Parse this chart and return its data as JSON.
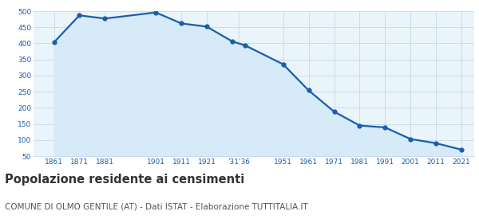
{
  "years": [
    1861,
    1871,
    1881,
    1901,
    1911,
    1921,
    1931,
    1936,
    1951,
    1961,
    1971,
    1981,
    1991,
    2001,
    2011,
    2021
  ],
  "population": [
    403,
    487,
    477,
    496,
    462,
    452,
    406,
    394,
    335,
    254,
    188,
    145,
    139,
    103,
    90,
    70
  ],
  "ylim": [
    50,
    500
  ],
  "yticks": [
    50,
    100,
    150,
    200,
    250,
    300,
    350,
    400,
    450,
    500
  ],
  "xlim": [
    1853,
    2026
  ],
  "tick_positions": [
    1861,
    1871,
    1881,
    1901,
    1911,
    1921,
    1933.5,
    1951,
    1961,
    1971,
    1981,
    1991,
    2001,
    2011,
    2021
  ],
  "tick_labels": [
    "1861",
    "1871",
    "1881",
    "1901",
    "1911",
    "1921",
    "'31'36",
    "1951",
    "1961",
    "1971",
    "1981",
    "1991",
    "2001",
    "2011",
    "2021"
  ],
  "line_color": "#1b5eab",
  "fill_color": "#d6eaf8",
  "grid_color": "#c8d8e8",
  "bg_color": "#eaf4fb",
  "tick_color": "#1b5eab",
  "title": "Popolazione residente ai censimenti",
  "subtitle": "COMUNE DI OLMO GENTILE (AT) - Dati ISTAT - Elaborazione TUTTITALIA.IT",
  "title_fontsize": 10.5,
  "subtitle_fontsize": 7.5,
  "title_color": "#333333",
  "subtitle_color": "#555555"
}
